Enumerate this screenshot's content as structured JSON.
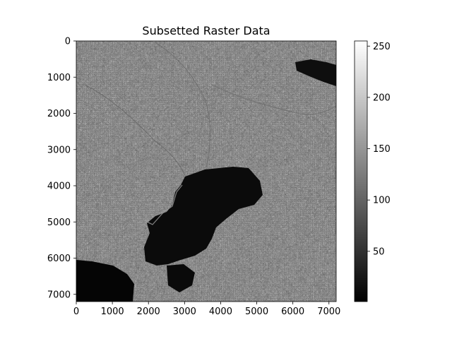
{
  "chart_data": {
    "type": "heatmap",
    "title": "Subsetted Raster Data",
    "xlabel": "",
    "ylabel": "",
    "xlim": [
      0,
      7200
    ],
    "ylim": [
      7200,
      0
    ],
    "x_ticks": [
      "0",
      "1000",
      "2000",
      "3000",
      "4000",
      "5000",
      "6000",
      "7000"
    ],
    "y_ticks": [
      "0",
      "1000",
      "2000",
      "3000",
      "4000",
      "5000",
      "6000",
      "7000"
    ],
    "colormap": "gray",
    "colorbar": {
      "range": [
        1,
        255
      ],
      "ticks": [
        "50",
        "100",
        "150",
        "200",
        "250"
      ]
    },
    "grid": false,
    "legend": "none"
  }
}
